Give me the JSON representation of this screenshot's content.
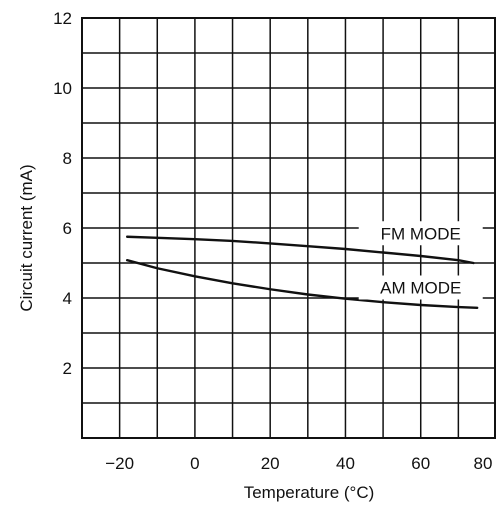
{
  "chart_data": {
    "type": "line",
    "title": "",
    "xlabel": "Temperature (°C)",
    "ylabel": "Circuit current (mA)",
    "xlim": [
      -30,
      80
    ],
    "ylim": [
      0,
      12
    ],
    "x_ticks": [
      -20,
      0,
      20,
      40,
      60,
      80
    ],
    "y_ticks": [
      2,
      4,
      6,
      8,
      10,
      12
    ],
    "x_tick_labels": [
      "−20",
      "0",
      "20",
      "40",
      "60",
      "80"
    ],
    "y_tick_labels": [
      "2",
      "4",
      "6",
      "8",
      "10",
      "12"
    ],
    "grid": true,
    "x_grid_step": 10,
    "y_grid_step": 1,
    "legend": "inline labels at right",
    "series": [
      {
        "name": "FM MODE",
        "x": [
          -18,
          -10,
          0,
          10,
          20,
          30,
          40,
          50,
          60,
          70,
          74
        ],
        "y": [
          5.75,
          5.72,
          5.68,
          5.63,
          5.56,
          5.48,
          5.4,
          5.3,
          5.2,
          5.08,
          5.0
        ]
      },
      {
        "name": "AM MODE",
        "x": [
          -18,
          -10,
          0,
          10,
          20,
          30,
          40,
          50,
          60,
          70,
          75
        ],
        "y": [
          5.08,
          4.85,
          4.62,
          4.42,
          4.25,
          4.1,
          3.98,
          3.88,
          3.8,
          3.74,
          3.72
        ]
      }
    ]
  }
}
